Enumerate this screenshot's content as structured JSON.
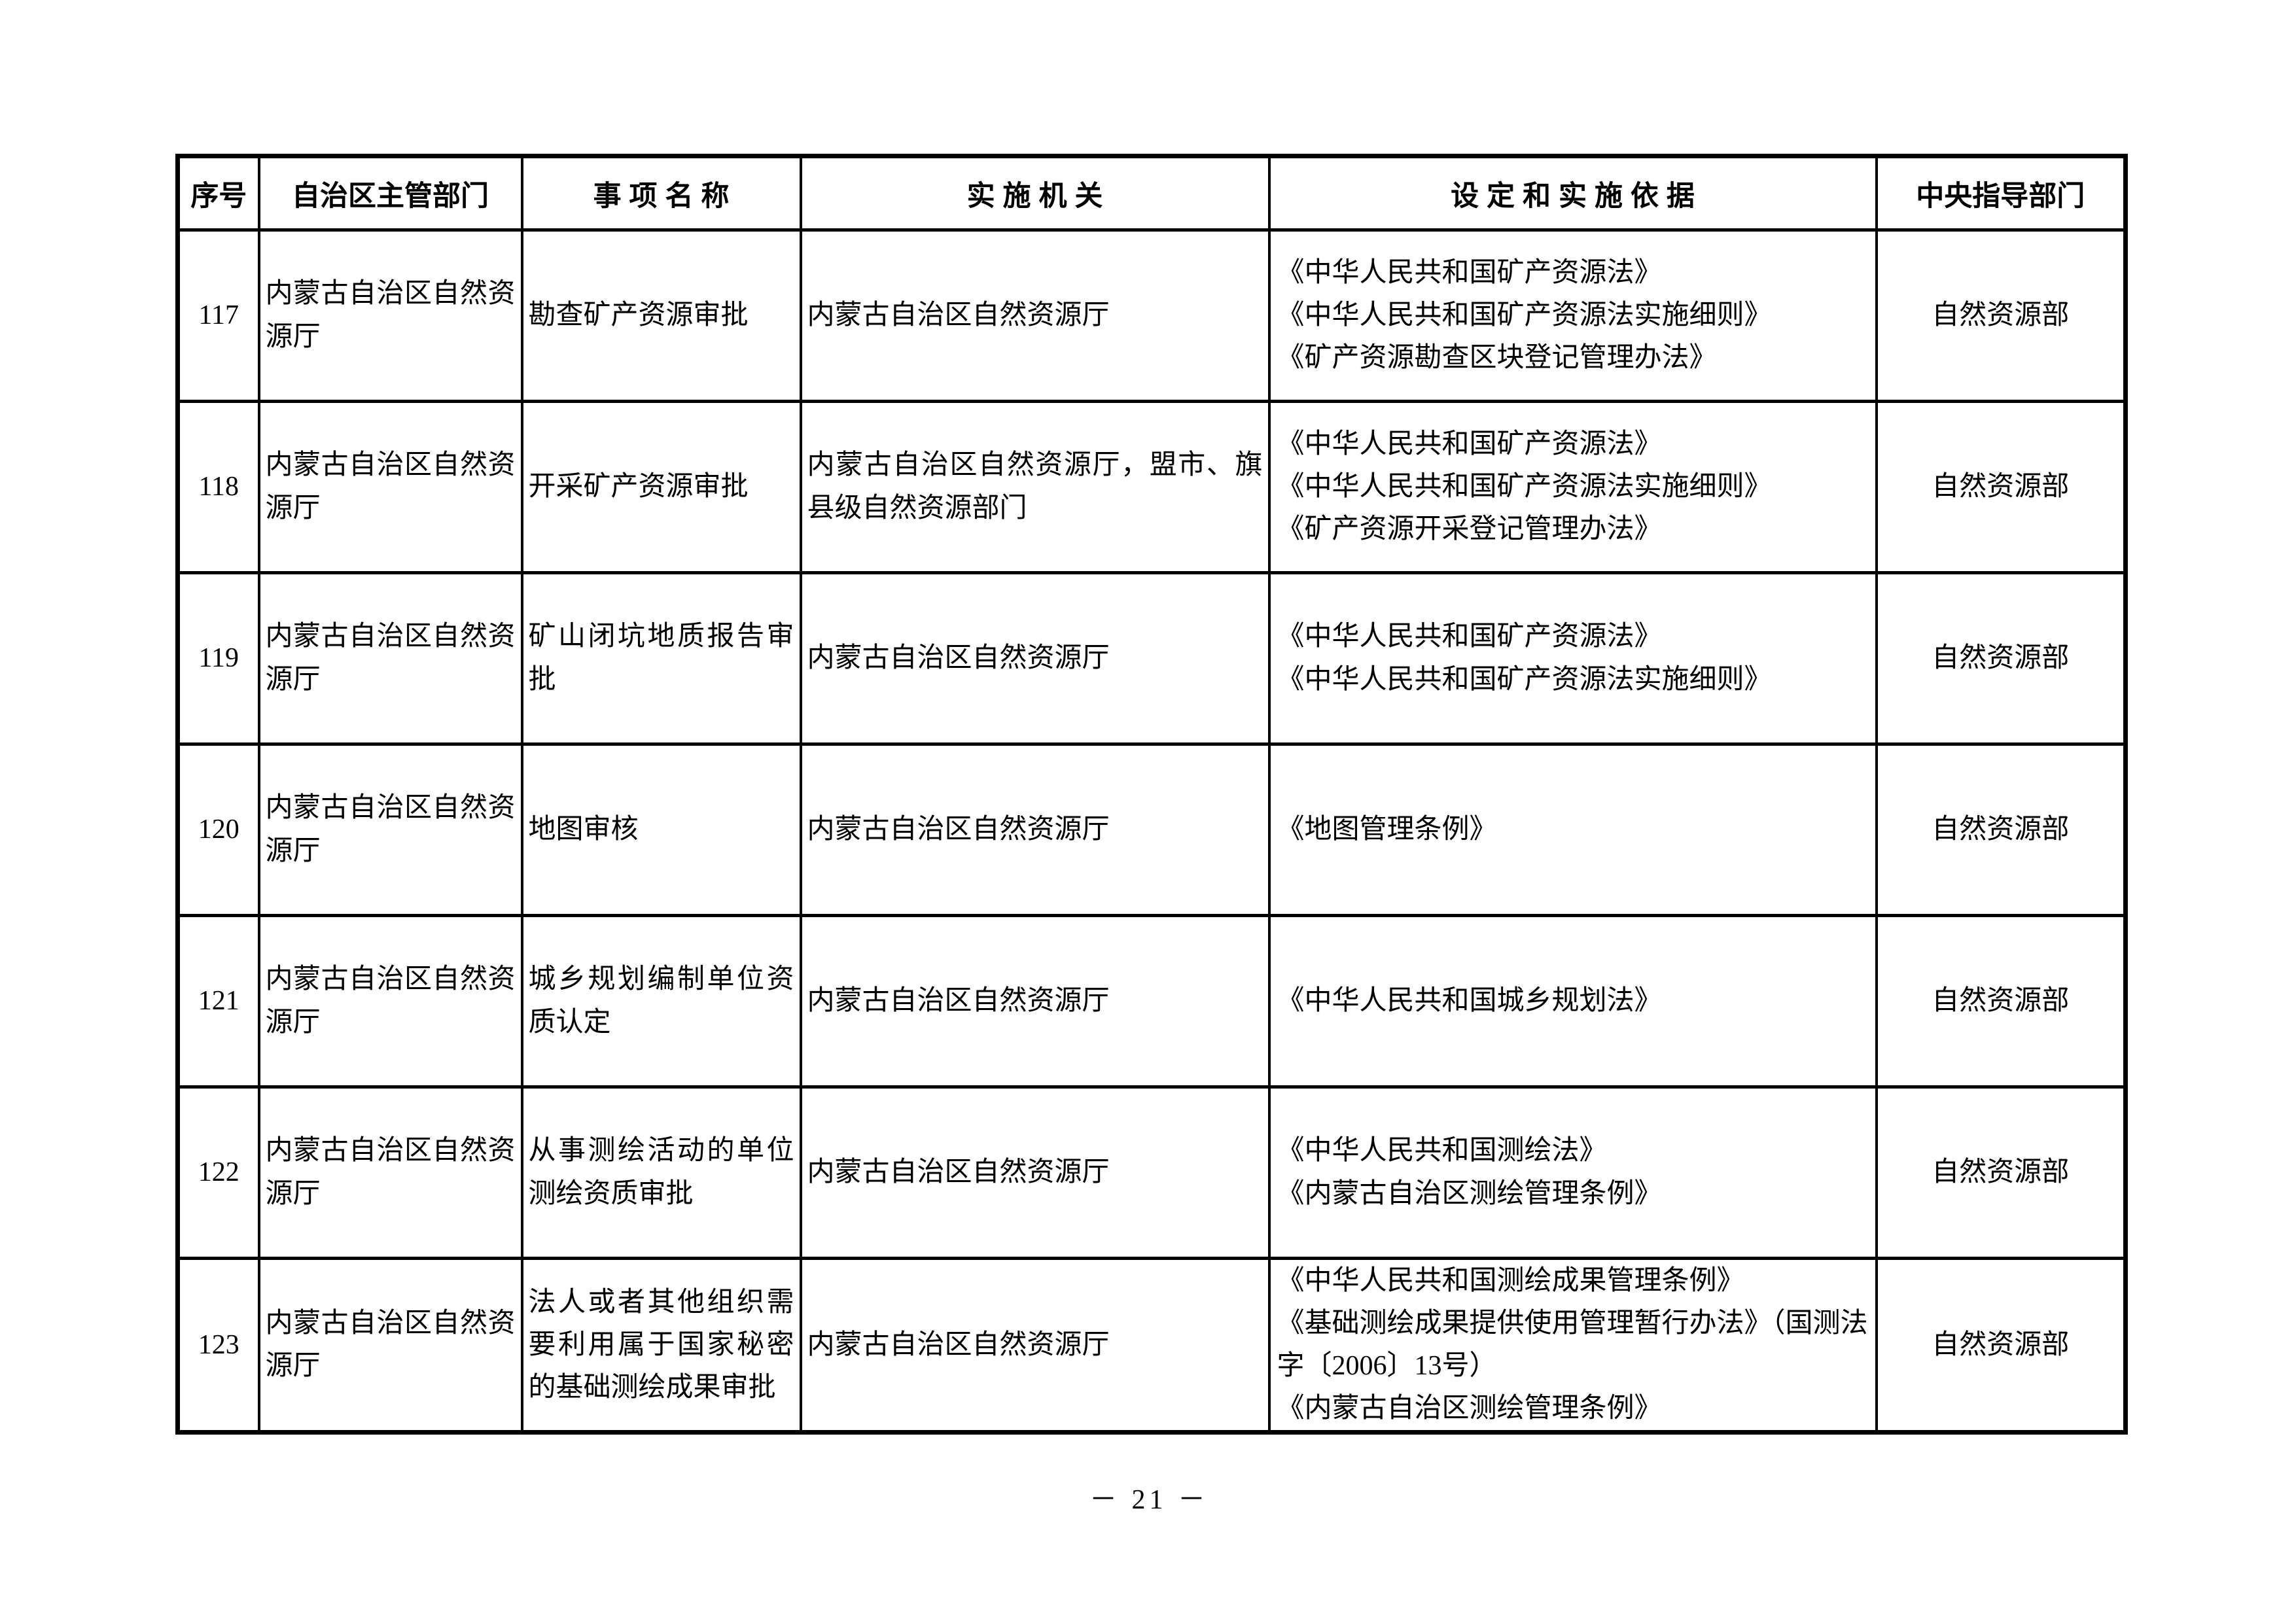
{
  "page": {
    "number": "－ 21 －"
  },
  "colors": {
    "border": "#000000",
    "text": "#000000",
    "background": "#ffffff"
  },
  "table": {
    "headers": {
      "no": "序号",
      "dept": "自治区主管部门",
      "item": "事 项 名 称",
      "agency": "实 施 机 关",
      "basis": "设 定 和 实 施 依 据",
      "central": "中央指导部门"
    },
    "rows": [
      {
        "no": "117",
        "dept": "内蒙古自治区自然资源厅",
        "item": "勘查矿产资源审批",
        "agency": "内蒙古自治区自然资源厅",
        "basis": [
          "《中华人民共和国矿产资源法》",
          "《中华人民共和国矿产资源法实施细则》",
          "《矿产资源勘查区块登记管理办法》"
        ],
        "central": "自然资源部"
      },
      {
        "no": "118",
        "dept": "内蒙古自治区自然资源厅",
        "item": "开采矿产资源审批",
        "agency": "内蒙古自治区自然资源厅，盟市、旗县级自然资源部门",
        "basis": [
          "《中华人民共和国矿产资源法》",
          "《中华人民共和国矿产资源法实施细则》",
          "《矿产资源开采登记管理办法》"
        ],
        "central": "自然资源部"
      },
      {
        "no": "119",
        "dept": "内蒙古自治区自然资源厅",
        "item": "矿山闭坑地质报告审批",
        "agency": "内蒙古自治区自然资源厅",
        "basis": [
          "《中华人民共和国矿产资源法》",
          "《中华人民共和国矿产资源法实施细则》"
        ],
        "central": "自然资源部"
      },
      {
        "no": "120",
        "dept": "内蒙古自治区自然资源厅",
        "item": "地图审核",
        "agency": "内蒙古自治区自然资源厅",
        "basis": [
          "《地图管理条例》"
        ],
        "central": "自然资源部"
      },
      {
        "no": "121",
        "dept": "内蒙古自治区自然资源厅",
        "item": "城乡规划编制单位资质认定",
        "agency": "内蒙古自治区自然资源厅",
        "basis": [
          "《中华人民共和国城乡规划法》"
        ],
        "central": "自然资源部"
      },
      {
        "no": "122",
        "dept": "内蒙古自治区自然资源厅",
        "item": "从事测绘活动的单位测绘资质审批",
        "agency": "内蒙古自治区自然资源厅",
        "basis": [
          "《中华人民共和国测绘法》",
          "《内蒙古自治区测绘管理条例》"
        ],
        "central": "自然资源部"
      },
      {
        "no": "123",
        "dept": "内蒙古自治区自然资源厅",
        "item": "法人或者其他组织需要利用属于国家秘密的基础测绘成果审批",
        "agency": "内蒙古自治区自然资源厅",
        "basis": [
          "《中华人民共和国测绘成果管理条例》",
          "《基础测绘成果提供使用管理暂行办法》（国测法字〔2006〕13号）",
          "《内蒙古自治区测绘管理条例》"
        ],
        "central": "自然资源部"
      }
    ]
  }
}
